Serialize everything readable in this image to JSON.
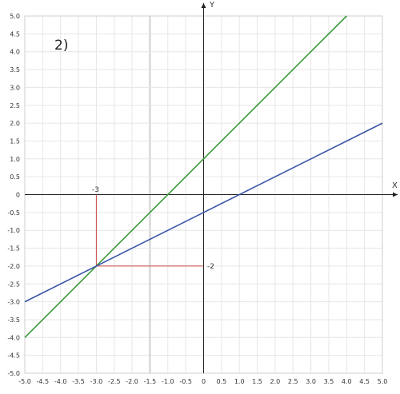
{
  "chart_data": {
    "type": "line",
    "title": "2)",
    "xlabel": "X",
    "ylabel": "Y",
    "xlim": [
      -5,
      5
    ],
    "ylim": [
      -5,
      5
    ],
    "grid": true,
    "x_ticks": [
      "-5.0",
      "-4.5",
      "-4.0",
      "-3.5",
      "-3.0",
      "-2.5",
      "-2.0",
      "-1.5",
      "-1.0",
      "-0.5",
      "0",
      "0.5",
      "1.0",
      "1.5",
      "2.0",
      "2.5",
      "3.0",
      "3.5",
      "4.0",
      "4.5",
      "5.0"
    ],
    "y_ticks": [
      "5.0",
      "4.5",
      "4.0",
      "3.5",
      "3.0",
      "2.5",
      "2.0",
      "1.5",
      "1.0",
      "0.5",
      "0",
      "-0.5",
      "-1.0",
      "-1.5",
      "-2.0",
      "-2.5",
      "-3.0",
      "-3.5",
      "-4.0",
      "-4.5",
      "-5.0"
    ],
    "highlight_gridline_x": -1.5,
    "series": [
      {
        "color": "#3c9a3c",
        "x": [
          -5,
          4
        ],
        "y": [
          -4,
          5
        ]
      },
      {
        "color": "#3b55a8",
        "x": [
          -5,
          5
        ],
        "y": [
          -3,
          2
        ]
      }
    ],
    "guides": {
      "color": "#c84848",
      "point": [
        -3,
        -2
      ],
      "x_label": "-3",
      "y_label": "-2"
    }
  }
}
